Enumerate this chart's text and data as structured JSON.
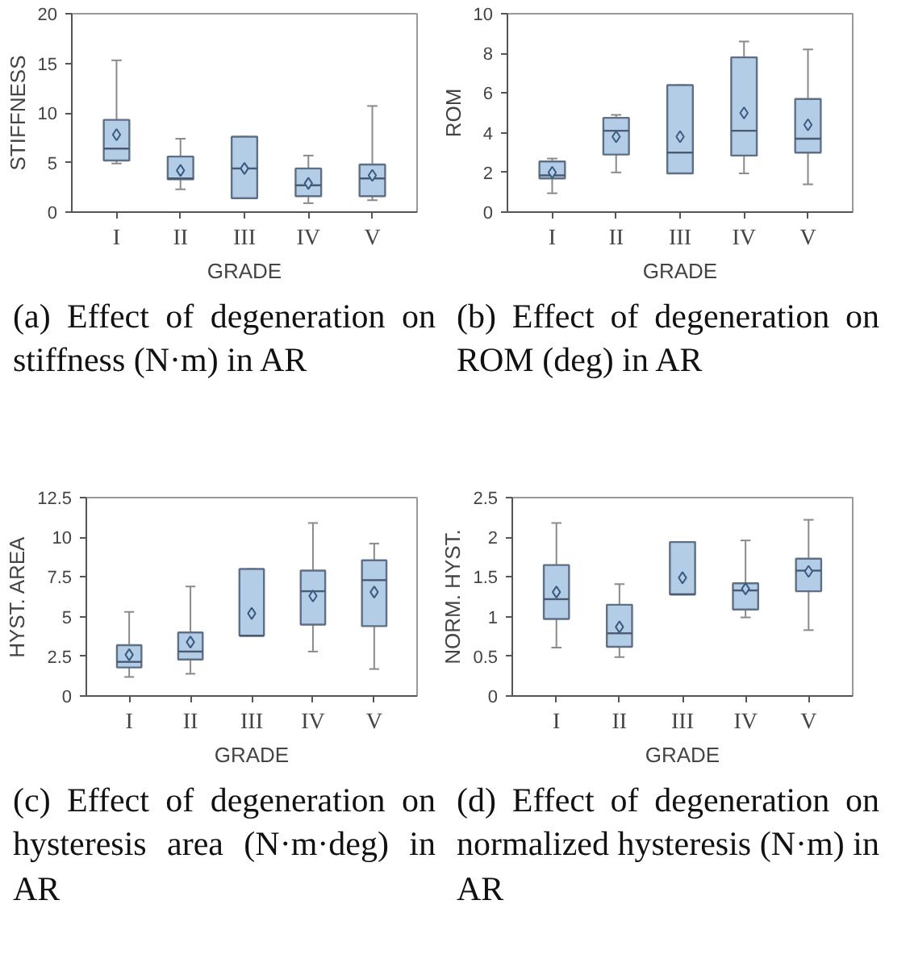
{
  "chart_data": [
    {
      "type": "box",
      "xlabel": "GRADE",
      "ylabel": "STIFFNESS",
      "categories": [
        "I",
        "II",
        "III",
        "IV",
        "V"
      ],
      "ylim": [
        0,
        20
      ],
      "yticks": [
        0,
        5,
        10,
        15,
        20
      ],
      "grid": false,
      "marker": "diamond",
      "color": "#b4cde6",
      "boxes": [
        {
          "low": 4.9,
          "q1": 5.2,
          "median": 6.4,
          "q3": 9.3,
          "high": 15.3,
          "mean": 7.8
        },
        {
          "low": 2.3,
          "q1": 3.3,
          "median": 3.4,
          "q3": 5.6,
          "high": 7.4,
          "mean": 4.2
        },
        {
          "low": 1.4,
          "q1": 1.4,
          "median": 4.4,
          "q3": 7.6,
          "high": 7.6,
          "mean": 4.4
        },
        {
          "low": 0.9,
          "q1": 1.6,
          "median": 2.7,
          "q3": 4.4,
          "high": 5.7,
          "mean": 2.9
        },
        {
          "low": 1.2,
          "q1": 1.6,
          "median": 3.4,
          "q3": 4.8,
          "high": 10.7,
          "mean": 3.7
        }
      ],
      "annotations": [
        "(a) Effect of degeneration on stiffness (N·m) in AR"
      ]
    },
    {
      "type": "box",
      "xlabel": "GRADE",
      "ylabel": "ROM",
      "categories": [
        "I",
        "II",
        "III",
        "IV",
        "V"
      ],
      "ylim": [
        0,
        10
      ],
      "yticks": [
        0,
        2,
        4,
        6,
        8,
        10
      ],
      "grid": false,
      "marker": "diamond",
      "color": "#b4cde6",
      "boxes": [
        {
          "low": 0.95,
          "q1": 1.7,
          "median": 1.85,
          "q3": 2.55,
          "high": 2.7,
          "mean": 2.0
        },
        {
          "low": 2.0,
          "q1": 2.9,
          "median": 4.1,
          "q3": 4.75,
          "high": 4.9,
          "mean": 3.8
        },
        {
          "low": 1.95,
          "q1": 1.95,
          "median": 3.0,
          "q3": 6.4,
          "high": 6.4,
          "mean": 3.8
        },
        {
          "low": 1.95,
          "q1": 2.85,
          "median": 4.1,
          "q3": 7.8,
          "high": 8.6,
          "mean": 5.0
        },
        {
          "low": 1.4,
          "q1": 3.0,
          "median": 3.7,
          "q3": 5.7,
          "high": 8.2,
          "mean": 4.4
        }
      ],
      "annotations": [
        "(b) Effect of degeneration on ROM (deg) in AR"
      ]
    },
    {
      "type": "box",
      "xlabel": "GRADE",
      "ylabel": "HYST. AREA",
      "categories": [
        "I",
        "II",
        "III",
        "IV",
        "V"
      ],
      "ylim": [
        0,
        12.5
      ],
      "yticks": [
        0,
        2.5,
        5,
        7.5,
        10,
        12.5
      ],
      "grid": false,
      "marker": "diamond",
      "color": "#b4cde6",
      "boxes": [
        {
          "low": 1.2,
          "q1": 1.8,
          "median": 2.15,
          "q3": 3.2,
          "high": 5.3,
          "mean": 2.6
        },
        {
          "low": 1.4,
          "q1": 2.3,
          "median": 2.8,
          "q3": 4.0,
          "high": 6.9,
          "mean": 3.4
        },
        {
          "low": 3.8,
          "q1": 3.8,
          "median": 3.8,
          "q3": 8.0,
          "high": 8.0,
          "mean": 5.2
        },
        {
          "low": 2.8,
          "q1": 4.5,
          "median": 6.6,
          "q3": 7.9,
          "high": 10.9,
          "mean": 6.3
        },
        {
          "low": 1.7,
          "q1": 4.4,
          "median": 7.3,
          "q3": 8.55,
          "high": 9.6,
          "mean": 6.55
        }
      ],
      "annotations": [
        "(c) Effect of degeneration on hysteresis area (N·m·deg) in AR"
      ]
    },
    {
      "type": "box",
      "xlabel": "GRADE",
      "ylabel": "NORM. HYST.",
      "categories": [
        "I",
        "II",
        "III",
        "IV",
        "V"
      ],
      "ylim": [
        0,
        2.5
      ],
      "yticks": [
        0,
        0.5,
        1,
        1.5,
        2,
        2.5
      ],
      "grid": false,
      "marker": "diamond",
      "color": "#b4cde6",
      "boxes": [
        {
          "low": 0.61,
          "q1": 0.97,
          "median": 1.22,
          "q3": 1.65,
          "high": 2.18,
          "mean": 1.31
        },
        {
          "low": 0.49,
          "q1": 0.62,
          "median": 0.79,
          "q3": 1.15,
          "high": 1.41,
          "mean": 0.87
        },
        {
          "low": 1.28,
          "q1": 1.28,
          "median": 1.28,
          "q3": 1.94,
          "high": 1.94,
          "mean": 1.49
        },
        {
          "low": 0.99,
          "q1": 1.09,
          "median": 1.33,
          "q3": 1.42,
          "high": 1.96,
          "mean": 1.35
        },
        {
          "low": 0.83,
          "q1": 1.32,
          "median": 1.58,
          "q3": 1.73,
          "high": 2.22,
          "mean": 1.57
        }
      ],
      "annotations": [
        "(d) Effect of degeneration on normalized hysteresis (N·m) in AR"
      ]
    }
  ]
}
